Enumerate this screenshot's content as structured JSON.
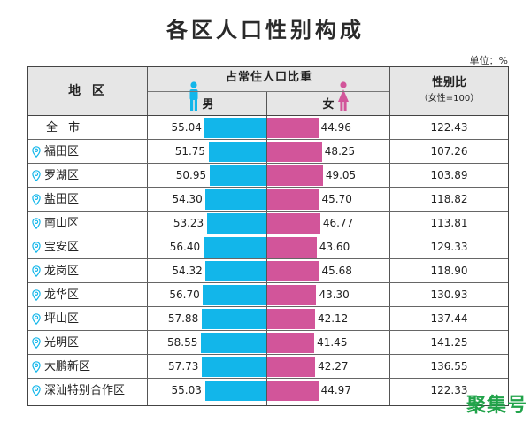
{
  "chart_data": {
    "type": "table",
    "title": "各区人口性别构成",
    "unit": "单位：%",
    "header": {
      "region": "地 区",
      "group": "占常住人口比重",
      "male": "男",
      "female": "女",
      "ratio": "性别比",
      "ratio_sub": "（女性=100）"
    },
    "rows": [
      {
        "region": "全 市",
        "male": 55.04,
        "female": 44.96,
        "ratio": 122.43,
        "pin": false
      },
      {
        "region": "福田区",
        "male": 51.75,
        "female": 48.25,
        "ratio": 107.26,
        "pin": true
      },
      {
        "region": "罗湖区",
        "male": 50.95,
        "female": 49.05,
        "ratio": 103.89,
        "pin": true
      },
      {
        "region": "盐田区",
        "male": 54.3,
        "female": 45.7,
        "ratio": 118.82,
        "pin": true
      },
      {
        "region": "南山区",
        "male": 53.23,
        "female": 46.77,
        "ratio": 113.81,
        "pin": true
      },
      {
        "region": "宝安区",
        "male": 56.4,
        "female": 43.6,
        "ratio": 129.33,
        "pin": true
      },
      {
        "region": "龙岗区",
        "male": 54.32,
        "female": 45.68,
        "ratio": 118.9,
        "pin": true
      },
      {
        "region": "龙华区",
        "male": 56.7,
        "female": 43.3,
        "ratio": 130.93,
        "pin": true
      },
      {
        "region": "坪山区",
        "male": 57.88,
        "female": 42.12,
        "ratio": 137.44,
        "pin": true
      },
      {
        "region": "光明区",
        "male": 58.55,
        "female": 41.45,
        "ratio": 141.25,
        "pin": true
      },
      {
        "region": "大鹏新区",
        "male": 57.73,
        "female": 42.27,
        "ratio": 136.55,
        "pin": true
      },
      {
        "region": "深汕特别合作区",
        "male": 55.03,
        "female": 44.97,
        "ratio": 122.33,
        "pin": true
      }
    ],
    "colors": {
      "male": "#12b6ea",
      "female": "#d2559a",
      "header_bg": "#e6e6e6",
      "pin": "#12b6ea"
    }
  },
  "watermark": "聚集号"
}
